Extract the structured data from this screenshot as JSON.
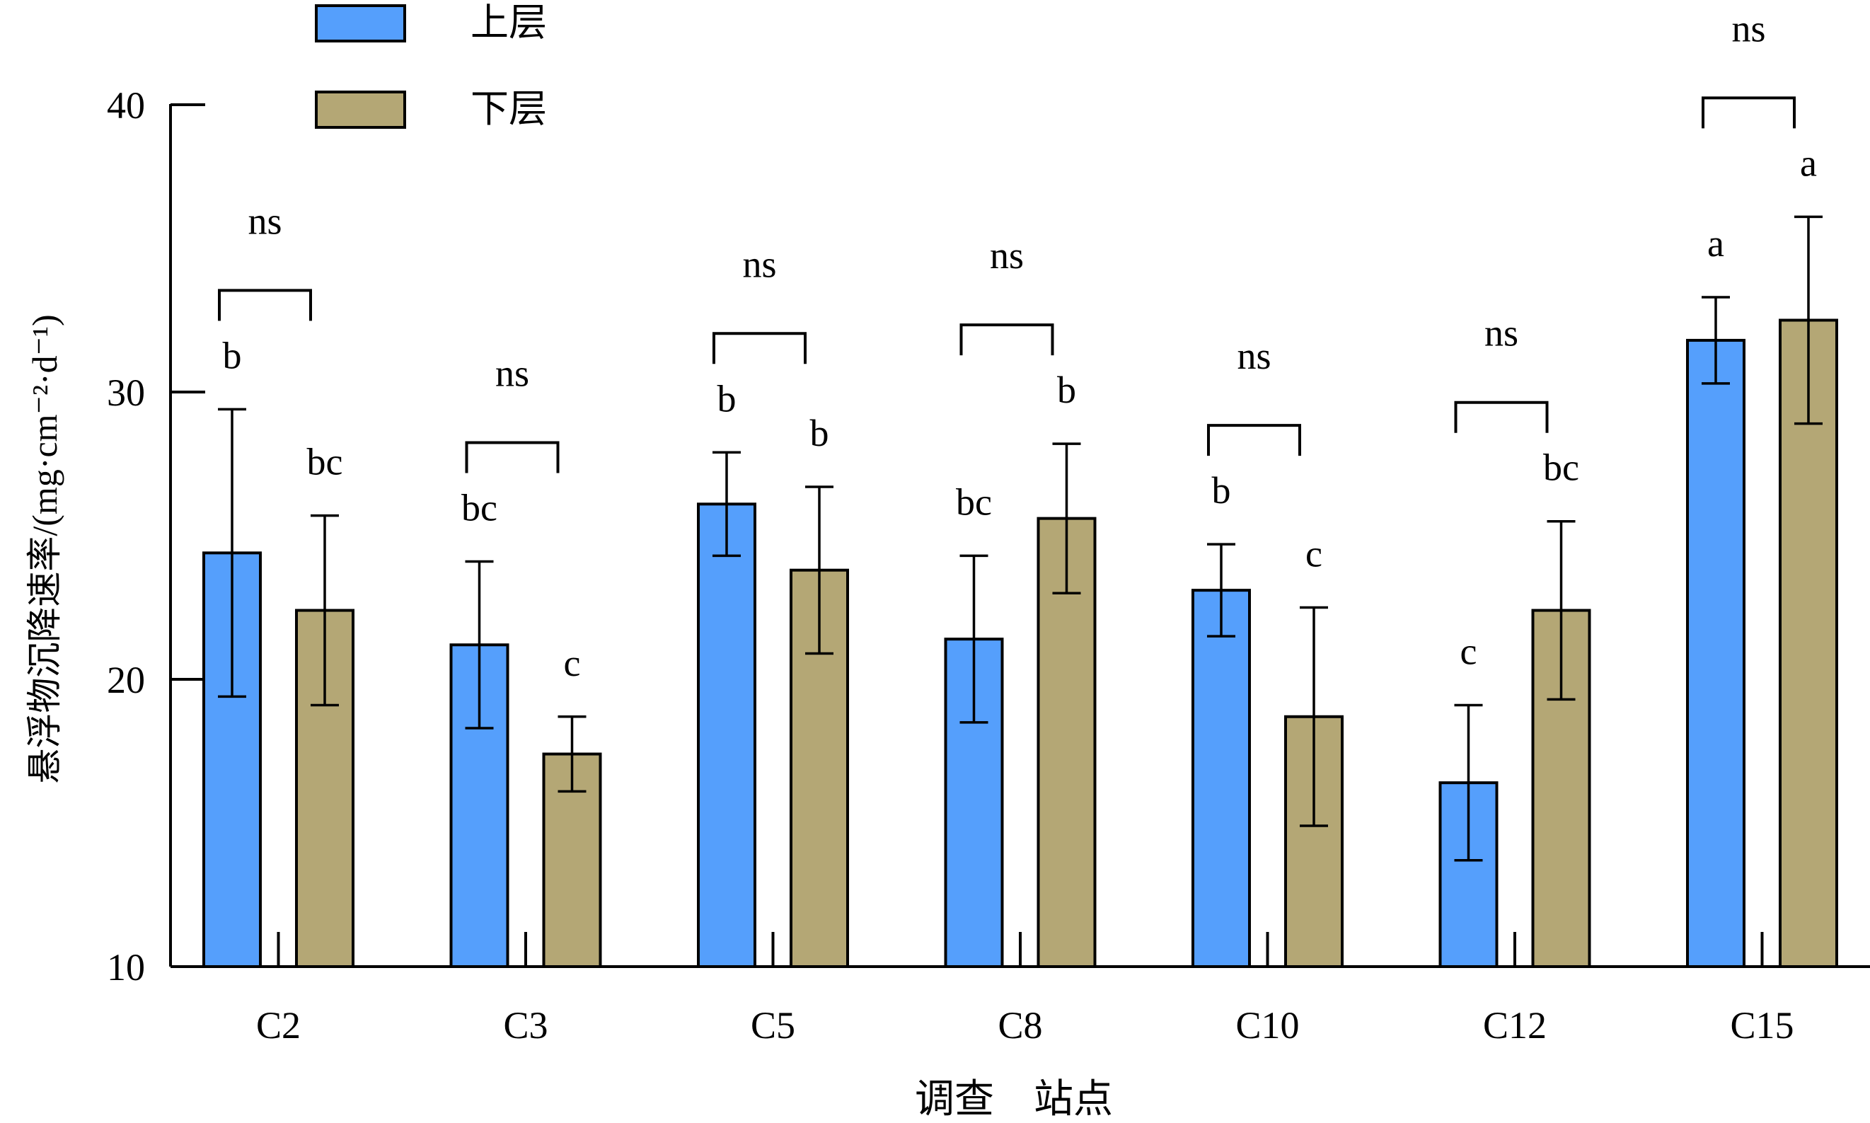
{
  "colors": {
    "upper": "#559FFC",
    "lower": "#B4A775",
    "stroke": "#000000"
  },
  "legend": {
    "upper_label": "上层",
    "lower_label": "下层"
  },
  "chart_data": {
    "type": "bar",
    "xlabel": "调查　站点",
    "ylabel": "悬浮物沉降速率/(mg·cm⁻²·d⁻¹)",
    "ylim": [
      10,
      40
    ],
    "yticks": [
      10,
      20,
      30,
      40
    ],
    "legend_position": "top-left",
    "categories": [
      "C2",
      "C3",
      "C5",
      "C8",
      "C10",
      "C12",
      "C15"
    ],
    "series": [
      {
        "name": "上层",
        "values": [
          24.4,
          21.2,
          26.1,
          21.4,
          23.1,
          16.4,
          31.8
        ],
        "error": [
          5.0,
          2.9,
          1.8,
          2.9,
          1.6,
          2.7,
          1.5
        ],
        "letters": [
          "b",
          "bc",
          "b",
          "bc",
          "b",
          "c",
          "a"
        ]
      },
      {
        "name": "下层",
        "values": [
          22.4,
          17.4,
          23.8,
          25.6,
          18.7,
          22.4,
          32.5
        ],
        "error": [
          3.3,
          1.3,
          2.9,
          2.6,
          3.8,
          3.1,
          3.6
        ],
        "letters": [
          "bc",
          "c",
          "b",
          "b",
          "c",
          "bc",
          "a"
        ]
      }
    ],
    "pair_labels": [
      "ns",
      "ns",
      "ns",
      "ns",
      "ns",
      "ns",
      "ns"
    ]
  }
}
